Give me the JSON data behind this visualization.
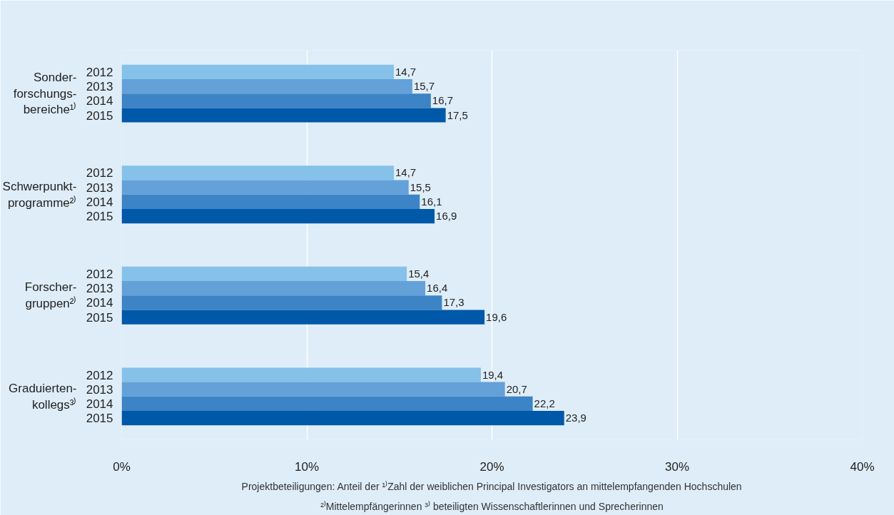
{
  "chart_data": {
    "type": "bar",
    "orientation": "horizontal",
    "categories": [
      "Sonder-\nforschungs-\nbereiche¹⁾",
      "Schwerpunkt-\nprogramme²⁾",
      "Forscher-\ngruppen²⁾",
      "Graduierten-\nkollegs³⁾"
    ],
    "series": [
      {
        "name": "2012",
        "color": "#85c1e9",
        "values": [
          14.7,
          14.7,
          15.4,
          19.4
        ],
        "value_labels": [
          "14,7",
          "14,7",
          "15,4",
          "19,4"
        ]
      },
      {
        "name": "2013",
        "color": "#63a1d8",
        "values": [
          15.7,
          15.5,
          16.4,
          20.7
        ],
        "value_labels": [
          "15,7",
          "15,5",
          "16,4",
          "20,7"
        ]
      },
      {
        "name": "2014",
        "color": "#3d84c6",
        "values": [
          16.7,
          16.1,
          17.3,
          22.2
        ],
        "value_labels": [
          "16,7",
          "16,1",
          "17,3",
          "22,2"
        ]
      },
      {
        "name": "2015",
        "color": "#0058a8",
        "values": [
          17.5,
          16.9,
          19.6,
          23.9
        ],
        "value_labels": [
          "17,5",
          "16,9",
          "19,6",
          "23,9"
        ]
      }
    ],
    "xlim": [
      0,
      40
    ],
    "xticks": [
      {
        "value": 0,
        "label": "0%"
      },
      {
        "value": 10,
        "label": "10%"
      },
      {
        "value": 20,
        "label": "20%"
      },
      {
        "value": 30,
        "label": "30%"
      },
      {
        "value": 40,
        "label": "40%"
      }
    ],
    "grid": "x",
    "annotations": [
      "Projektbeteiligungen: Anteil der ¹⁾Zahl der weiblichen Principal Investigators an mittelempfangenden Hochschulen\n²⁾Mittelempfängerinnen ³⁾ beteiligten Wissenschaftlerinnen und Sprecherinnen"
    ]
  }
}
